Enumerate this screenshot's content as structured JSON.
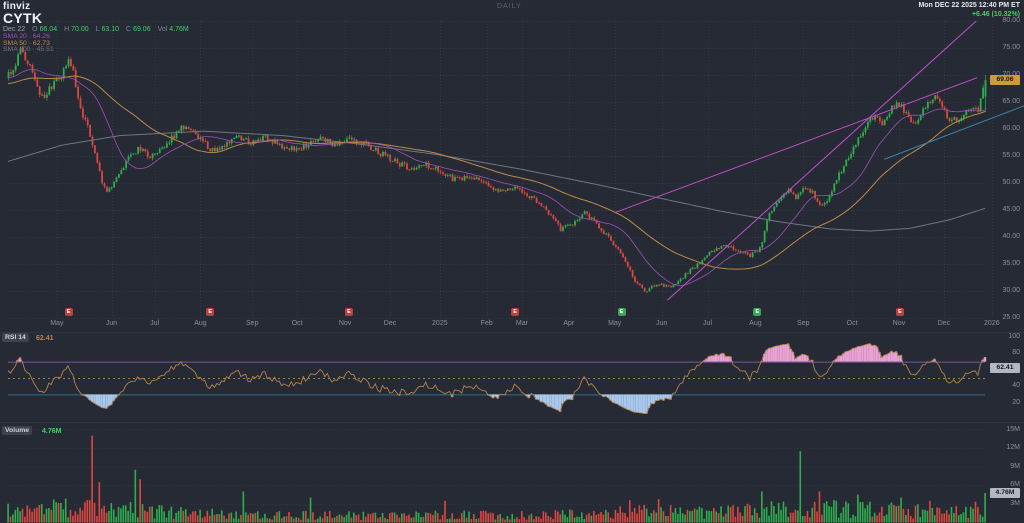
{
  "header": {
    "logo": "finviz",
    "ticker": "CYTK",
    "watermark": "DAILY",
    "datetime": "Mon DEC 22 2025 12:40 PM ET",
    "change": "+6.46 (10.32%)",
    "quote": {
      "date": "Dec 22",
      "o_label": "O",
      "o": "66.04",
      "h_label": "H",
      "h": "70.00",
      "l_label": "L",
      "l": "63.10",
      "c_label": "C",
      "c": "69.06",
      "vol_label": "Vol",
      "vol": "4.76M"
    },
    "smas": [
      {
        "label": "SMA 20",
        "sep": "·",
        "value": "64.26"
      },
      {
        "label": "SMA 50",
        "sep": "·",
        "value": "62.73"
      },
      {
        "label": "SMA 200",
        "sep": "·",
        "value": "45.51"
      }
    ]
  },
  "colors": {
    "bg": "#252a34",
    "candle_up": "#2fae4e",
    "candle_down": "#dc4840",
    "text": "#8b919d",
    "green_text": "#3fd069",
    "sma20": "#a050b8",
    "sma50": "#bd8a46",
    "sma200": "#707784",
    "magenta": "#c44fd0",
    "teal": "#3c84a8",
    "rsi_line": "#b5834c",
    "rsi_upper": "#7c55a2",
    "rsi_mid": "#a57f3e",
    "rsi_lower": "#2d7092",
    "rsi_ob": "#e8a3d4",
    "rsi_os": "#a8c8ec",
    "badge_neg": "#b8433c",
    "badge_pos": "#3ca55c",
    "price_box": "#d09a36",
    "value_box": "#b2b8c2"
  },
  "chart_data": {
    "type": "candlestick",
    "symbol": "CYTK",
    "timeframe": "DAILY",
    "price_axis": {
      "min": 25,
      "max": 80,
      "tick_step": 5,
      "ticks": [
        "80.00",
        "75.00",
        "70.00",
        "65.00",
        "60.00",
        "55.00",
        "50.00",
        "45.00",
        "40.00",
        "35.00",
        "30.00",
        "25.00"
      ]
    },
    "current_price_label": "69.06",
    "last_candle": {
      "o": 66.04,
      "h": 70.0,
      "l": 63.1,
      "c": 69.06
    },
    "x_labels": [
      {
        "t": "May",
        "f": 0.05
      },
      {
        "t": "Jun",
        "f": 0.106
      },
      {
        "t": "Jul",
        "f": 0.15
      },
      {
        "t": "Aug",
        "f": 0.197
      },
      {
        "t": "Sep",
        "f": 0.25
      },
      {
        "t": "Oct",
        "f": 0.296
      },
      {
        "t": "Nov",
        "f": 0.345
      },
      {
        "t": "Dec",
        "f": 0.391
      },
      {
        "t": "2025",
        "f": 0.442
      },
      {
        "t": "Feb",
        "f": 0.49
      },
      {
        "t": "Mar",
        "f": 0.526
      },
      {
        "t": "Apr",
        "f": 0.574
      },
      {
        "t": "May",
        "f": 0.621
      },
      {
        "t": "Jun",
        "f": 0.669
      },
      {
        "t": "Jul",
        "f": 0.716
      },
      {
        "t": "Aug",
        "f": 0.765
      },
      {
        "t": "Sep",
        "f": 0.814
      },
      {
        "t": "Oct",
        "f": 0.864
      },
      {
        "t": "Nov",
        "f": 0.912
      },
      {
        "t": "Dec",
        "f": 0.958
      },
      {
        "t": "2026",
        "f": 1.007
      }
    ],
    "earnings_badges": [
      {
        "f": 0.062,
        "label": "E",
        "type": "neg"
      },
      {
        "f": 0.207,
        "label": "E",
        "type": "neg"
      },
      {
        "f": 0.349,
        "label": "E",
        "type": "neg"
      },
      {
        "f": 0.519,
        "label": "E",
        "type": "neg"
      },
      {
        "f": 0.628,
        "label": "E",
        "type": "pos"
      },
      {
        "f": 0.767,
        "label": "E",
        "type": "pos"
      },
      {
        "f": 0.913,
        "label": "E",
        "type": "neg"
      }
    ],
    "price_path": [
      [
        0.0,
        70.0
      ],
      [
        0.008,
        72.5
      ],
      [
        0.013,
        74.5
      ],
      [
        0.02,
        72.5
      ],
      [
        0.028,
        68.0
      ],
      [
        0.035,
        66.0
      ],
      [
        0.045,
        68.0
      ],
      [
        0.055,
        70.0
      ],
      [
        0.062,
        73.5
      ],
      [
        0.066,
        71.0
      ],
      [
        0.07,
        66.0
      ],
      [
        0.075,
        62.5
      ],
      [
        0.082,
        60.0
      ],
      [
        0.088,
        55.5
      ],
      [
        0.094,
        51.5
      ],
      [
        0.1,
        48.0
      ],
      [
        0.106,
        49.5
      ],
      [
        0.113,
        52.0
      ],
      [
        0.123,
        54.5
      ],
      [
        0.135,
        56.5
      ],
      [
        0.145,
        55.0
      ],
      [
        0.156,
        56.0
      ],
      [
        0.166,
        58.0
      ],
      [
        0.176,
        60.0
      ],
      [
        0.186,
        60.5
      ],
      [
        0.197,
        58.0
      ],
      [
        0.207,
        56.0
      ],
      [
        0.217,
        56.5
      ],
      [
        0.232,
        58.5
      ],
      [
        0.248,
        57.5
      ],
      [
        0.263,
        58.5
      ],
      [
        0.278,
        57.0
      ],
      [
        0.294,
        56.0
      ],
      [
        0.309,
        57.5
      ],
      [
        0.319,
        58.5
      ],
      [
        0.335,
        57.0
      ],
      [
        0.35,
        58.5
      ],
      [
        0.365,
        57.0
      ],
      [
        0.381,
        55.5
      ],
      [
        0.396,
        54.0
      ],
      [
        0.411,
        52.5
      ],
      [
        0.427,
        53.5
      ],
      [
        0.445,
        52.0
      ],
      [
        0.458,
        50.5
      ],
      [
        0.473,
        51.5
      ],
      [
        0.488,
        50.0
      ],
      [
        0.503,
        48.5
      ],
      [
        0.519,
        49.5
      ],
      [
        0.534,
        47.5
      ],
      [
        0.549,
        45.5
      ],
      [
        0.565,
        41.5
      ],
      [
        0.577,
        42.5
      ],
      [
        0.59,
        44.5
      ],
      [
        0.604,
        42.0
      ],
      [
        0.616,
        39.5
      ],
      [
        0.628,
        36.5
      ],
      [
        0.641,
        32.0
      ],
      [
        0.652,
        30.0
      ],
      [
        0.665,
        31.5
      ],
      [
        0.678,
        30.5
      ],
      [
        0.693,
        33.0
      ],
      [
        0.708,
        35.5
      ],
      [
        0.72,
        37.5
      ],
      [
        0.734,
        38.5
      ],
      [
        0.747,
        37.5
      ],
      [
        0.759,
        36.5
      ],
      [
        0.77,
        38.0
      ],
      [
        0.778,
        44.0
      ],
      [
        0.788,
        46.5
      ],
      [
        0.798,
        48.5
      ],
      [
        0.806,
        47.0
      ],
      [
        0.816,
        49.5
      ],
      [
        0.826,
        47.5
      ],
      [
        0.833,
        45.5
      ],
      [
        0.841,
        48.0
      ],
      [
        0.851,
        52.0
      ],
      [
        0.862,
        55.5
      ],
      [
        0.87,
        58.0
      ],
      [
        0.878,
        60.5
      ],
      [
        0.887,
        62.5
      ],
      [
        0.894,
        61.0
      ],
      [
        0.902,
        63.5
      ],
      [
        0.911,
        65.0
      ],
      [
        0.918,
        63.0
      ],
      [
        0.925,
        60.5
      ],
      [
        0.933,
        62.5
      ],
      [
        0.941,
        64.5
      ],
      [
        0.948,
        66.0
      ],
      [
        0.955,
        64.0
      ],
      [
        0.962,
        62.0
      ],
      [
        0.971,
        61.5
      ],
      [
        0.978,
        63.0
      ],
      [
        0.985,
        63.5
      ],
      [
        0.993,
        63.8
      ],
      [
        1.0,
        69.06
      ]
    ],
    "sma200_path": [
      [
        0.0,
        54.0
      ],
      [
        0.055,
        57.0
      ],
      [
        0.115,
        58.8
      ],
      [
        0.2,
        59.6
      ],
      [
        0.28,
        58.8
      ],
      [
        0.36,
        57.2
      ],
      [
        0.442,
        55.2
      ],
      [
        0.524,
        52.6
      ],
      [
        0.606,
        49.6
      ],
      [
        0.667,
        47.2
      ],
      [
        0.729,
        44.8
      ],
      [
        0.79,
        42.8
      ],
      [
        0.841,
        41.5
      ],
      [
        0.882,
        41.1
      ],
      [
        0.923,
        41.6
      ],
      [
        0.964,
        43.2
      ],
      [
        1.0,
        45.3
      ]
    ],
    "trendlines": [
      {
        "f1": 0.675,
        "p1": 28.3,
        "f2": 0.991,
        "p2": 80.0,
        "color": "magenta"
      },
      {
        "f1": 0.621,
        "p1": 44.5,
        "f2": 0.992,
        "p2": 69.5,
        "color": "magenta"
      },
      {
        "f1": 0.897,
        "p1": 54.4,
        "f2": 1.04,
        "p2": 64.3,
        "color": "teal"
      }
    ],
    "rsi": {
      "label": "RSI 14",
      "value": "62.41",
      "upper_level": 70,
      "mid_level": 50,
      "lower_level": 30,
      "ticks": [
        [
          "100",
          100
        ],
        [
          "80",
          80
        ],
        [
          "60",
          60
        ],
        [
          "40",
          40
        ],
        [
          "20",
          20
        ]
      ]
    },
    "volume": {
      "label": "Volume",
      "value": "4.76M",
      "ticks": [
        [
          "15M",
          15
        ],
        [
          "12M",
          12
        ],
        [
          "9M",
          9
        ],
        [
          "6M",
          6
        ],
        [
          "3M",
          3
        ]
      ],
      "envelope": [
        [
          0.0,
          2.2
        ],
        [
          0.06,
          2.6
        ],
        [
          0.12,
          2.3
        ],
        [
          0.2,
          1.6
        ],
        [
          0.3,
          1.3
        ],
        [
          0.4,
          1.2
        ],
        [
          0.45,
          1.4
        ],
        [
          0.52,
          1.3
        ],
        [
          0.6,
          1.5
        ],
        [
          0.65,
          2.1
        ],
        [
          0.7,
          1.7
        ],
        [
          0.77,
          2.2
        ],
        [
          0.82,
          2.6
        ],
        [
          0.87,
          2.3
        ],
        [
          0.92,
          2.1
        ],
        [
          0.96,
          1.9
        ],
        [
          1.0,
          2.4
        ]
      ],
      "spikes": [
        [
          0.087,
          14.0
        ],
        [
          0.094,
          6.5
        ],
        [
          0.13,
          8.5
        ],
        [
          0.136,
          7.0
        ],
        [
          0.24,
          5.0
        ],
        [
          0.309,
          4.0
        ],
        [
          0.447,
          3.5
        ],
        [
          0.637,
          3.6
        ],
        [
          0.667,
          3.8
        ],
        [
          0.772,
          5.0
        ],
        [
          0.811,
          11.5
        ],
        [
          0.831,
          5.0
        ],
        [
          0.869,
          4.5
        ],
        [
          0.913,
          4.0
        ],
        [
          0.944,
          3.5
        ],
        [
          1.0,
          4.76
        ]
      ]
    },
    "render": {
      "candles": 408,
      "seed": 20251222
    }
  }
}
